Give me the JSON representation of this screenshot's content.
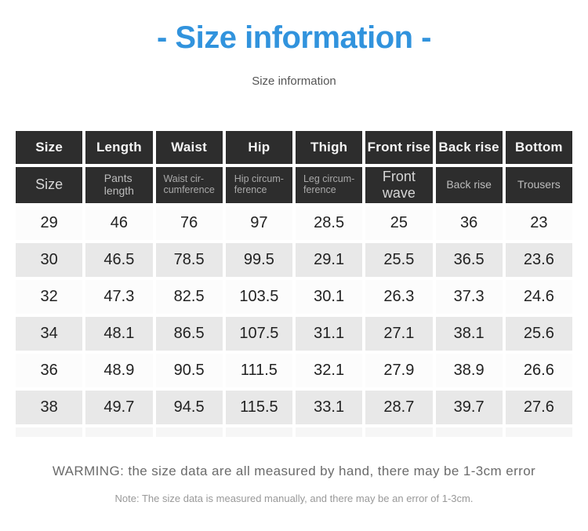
{
  "title": "- Size information -",
  "subtitle": "Size information",
  "table": {
    "columns": [
      {
        "key": "size",
        "header": "Size",
        "subheader": "Size"
      },
      {
        "key": "length",
        "header": "Length",
        "subheader": "Pants\nlength"
      },
      {
        "key": "waist",
        "header": "Waist",
        "subheader": "Waist cir-\ncumference"
      },
      {
        "key": "hip",
        "header": "Hip",
        "subheader": "Hip circum-\nference"
      },
      {
        "key": "thigh",
        "header": "Thigh",
        "subheader": "Leg circum-\nference"
      },
      {
        "key": "front-rise",
        "header": "Front rise",
        "subheader": "Front\nwave"
      },
      {
        "key": "back-rise",
        "header": "Back rise",
        "subheader": "Back rise"
      },
      {
        "key": "bottom",
        "header": "Bottom",
        "subheader": "Trousers"
      }
    ],
    "rows": [
      [
        "29",
        "46",
        "76",
        "97",
        "28.5",
        "25",
        "36",
        "23"
      ],
      [
        "30",
        "46.5",
        "78.5",
        "99.5",
        "29.1",
        "25.5",
        "36.5",
        "23.6"
      ],
      [
        "32",
        "47.3",
        "82.5",
        "103.5",
        "30.1",
        "26.3",
        "37.3",
        "24.6"
      ],
      [
        "34",
        "48.1",
        "86.5",
        "107.5",
        "31.1",
        "27.1",
        "38.1",
        "25.6"
      ],
      [
        "36",
        "48.9",
        "90.5",
        "111.5",
        "32.1",
        "27.9",
        "38.9",
        "26.6"
      ],
      [
        "38",
        "49.7",
        "94.5",
        "115.5",
        "33.1",
        "28.7",
        "39.7",
        "27.6"
      ]
    ]
  },
  "footer": {
    "warning": "WARMING: the size data are all measured by hand, there may be 1-3cm error",
    "note": "Note: The size data is measured manually, and there may be an error of 1-3cm."
  },
  "colors": {
    "title_blue": "#3193dd",
    "header_bg": "#2d2d2d",
    "row_bg": "#fcfcfc",
    "row_alt_bg": "#e8e8e8"
  }
}
